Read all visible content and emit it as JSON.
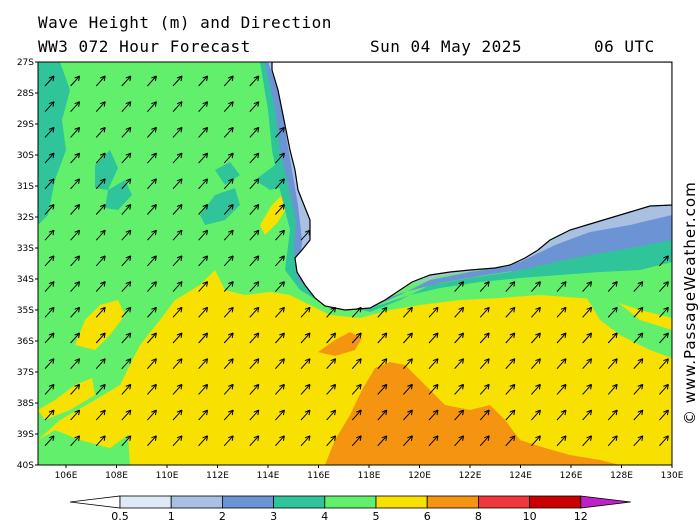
{
  "header": {
    "line1": "Wave Height (m) and Direction",
    "line2": "WW3 072 Hour Forecast",
    "date": "Sun 04 May 2025",
    "time": "06 UTC"
  },
  "credit": "© www.PassageWeather.com",
  "lat_labels": [
    "27S",
    "28S",
    "29S",
    "30S",
    "31S",
    "32S",
    "33S",
    "34S",
    "35S",
    "36S",
    "37S",
    "38S",
    "39S",
    "40S"
  ],
  "lon_labels": [
    "106E",
    "108E",
    "110E",
    "112E",
    "114E",
    "116E",
    "118E",
    "120E",
    "122E",
    "124E",
    "126E",
    "128E",
    "130E"
  ],
  "colorbar": {
    "values": [
      "0.5",
      "1",
      "2",
      "3",
      "4",
      "5",
      "6",
      "8",
      "10",
      "12"
    ],
    "colors": [
      "#dfe8f6",
      "#a9c0e2",
      "#6c93d3",
      "#2fc49a",
      "#62f06c",
      "#f8e000",
      "#f49410",
      "#f0383c",
      "#c80000",
      "#c020c8"
    ]
  },
  "map_colors": {
    "land": "#ffffff",
    "band_blue_light": "#a9c0e2",
    "band_blue": "#6c93d3",
    "band_teal": "#2fc49a",
    "band_green": "#62f06c",
    "band_yellow": "#f8e000",
    "band_orange": "#f49410"
  }
}
